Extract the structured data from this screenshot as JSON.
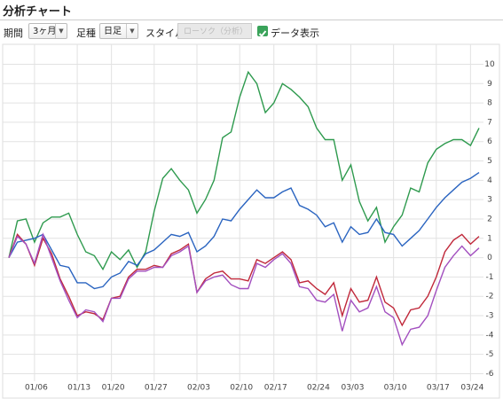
{
  "header": {
    "title": "分析チャート"
  },
  "controls": {
    "period_label": "期間",
    "period_value": "3ヶ月",
    "bar_label": "足種",
    "bar_value": "日足",
    "style_label": "スタイル",
    "style_value": "ローソク（分析）",
    "data_label": "データ表示"
  },
  "chart_data": {
    "type": "line",
    "categories": [
      null,
      null,
      null,
      "01/06",
      null,
      null,
      null,
      null,
      "01/13",
      null,
      null,
      null,
      "01/20",
      null,
      null,
      null,
      null,
      "01/27",
      null,
      null,
      null,
      null,
      "02/03",
      null,
      null,
      null,
      null,
      "02/10",
      null,
      null,
      null,
      "02/17",
      null,
      null,
      null,
      null,
      "02/24",
      null,
      null,
      null,
      "03/03",
      null,
      null,
      null,
      null,
      "03/10",
      null,
      null,
      null,
      null,
      "03/17",
      null,
      null,
      null,
      "03/24",
      null
    ],
    "ylim": [
      -6.3,
      10.8
    ],
    "yticks": [
      -6,
      -5,
      -4,
      -3,
      -2,
      -1,
      0,
      1,
      2,
      3,
      4,
      5,
      6,
      7,
      8,
      9,
      10
    ],
    "grid": true,
    "series": [
      {
        "color": "#2e9a4e",
        "values": [
          0,
          1.9,
          2.0,
          0.8,
          1.8,
          2.1,
          2.1,
          2.3,
          1.2,
          0.3,
          0.1,
          -0.6,
          0.3,
          -0.1,
          0.4,
          -0.5,
          0.3,
          2.4,
          4.1,
          4.6,
          4.0,
          3.5,
          2.3,
          3.0,
          4.0,
          6.2,
          6.5,
          8.3,
          9.6,
          9.0,
          7.5,
          8.0,
          9.0,
          8.7,
          8.3,
          7.8,
          6.7,
          6.1,
          6.1,
          4.0,
          4.8,
          2.9,
          1.9,
          2.6,
          0.8,
          1.6,
          2.2,
          3.6,
          3.4,
          4.9,
          5.6,
          5.9,
          6.1,
          6.1,
          5.8,
          6.7
        ]
      },
      {
        "color": "#2a64c0",
        "values": [
          0,
          0.8,
          0.9,
          1.0,
          1.2,
          0.4,
          -0.4,
          -0.5,
          -1.3,
          -1.3,
          -1.6,
          -1.5,
          -1.0,
          -0.8,
          -0.2,
          -0.4,
          0.2,
          0.4,
          0.8,
          1.2,
          1.1,
          1.3,
          0.3,
          0.6,
          1.1,
          2.0,
          1.9,
          2.5,
          3.0,
          3.5,
          3.1,
          3.1,
          3.4,
          3.6,
          2.7,
          2.5,
          2.2,
          1.6,
          1.8,
          0.8,
          1.6,
          1.2,
          1.3,
          2.0,
          1.3,
          1.2,
          0.6,
          1.0,
          1.4,
          2.0,
          2.6,
          3.1,
          3.5,
          3.9,
          4.1,
          4.4
        ]
      },
      {
        "color": "#c0283a",
        "values": [
          0,
          1.2,
          0.7,
          -0.4,
          1.0,
          0.2,
          -1.1,
          -2.0,
          -3.0,
          -2.8,
          -2.9,
          -3.2,
          -2.1,
          -2.0,
          -1.0,
          -0.6,
          -0.6,
          -0.4,
          -0.5,
          0.2,
          0.4,
          0.7,
          -1.8,
          -1.1,
          -0.8,
          -0.7,
          -1.1,
          -1.1,
          -1.2,
          -0.1,
          -0.3,
          0.0,
          0.3,
          -0.1,
          -1.3,
          -1.2,
          -1.6,
          -1.9,
          -1.3,
          -3.0,
          -1.6,
          -2.3,
          -2.2,
          -1.0,
          -2.3,
          -2.6,
          -3.5,
          -2.7,
          -2.6,
          -2.0,
          -1.0,
          0.3,
          0.9,
          1.2,
          0.7,
          1.1
        ]
      },
      {
        "color": "#a24fbf",
        "values": [
          0,
          1.1,
          0.7,
          -0.3,
          1.2,
          0,
          -1.2,
          -2.2,
          -3.1,
          -2.7,
          -2.8,
          -3.3,
          -2.1,
          -2.1,
          -1.1,
          -0.7,
          -0.7,
          -0.5,
          -0.5,
          0.1,
          0.3,
          0.6,
          -1.8,
          -1.2,
          -1.0,
          -0.9,
          -1.4,
          -1.6,
          -1.6,
          -0.3,
          -0.5,
          -0.1,
          0.2,
          -0.3,
          -1.5,
          -1.6,
          -2.2,
          -2.3,
          -1.9,
          -3.8,
          -2.2,
          -2.8,
          -2.6,
          -1.5,
          -2.8,
          -3.1,
          -4.5,
          -3.7,
          -3.6,
          -3.0,
          -1.7,
          -0.5,
          0.1,
          0.6,
          0.1,
          0.5
        ]
      }
    ]
  }
}
